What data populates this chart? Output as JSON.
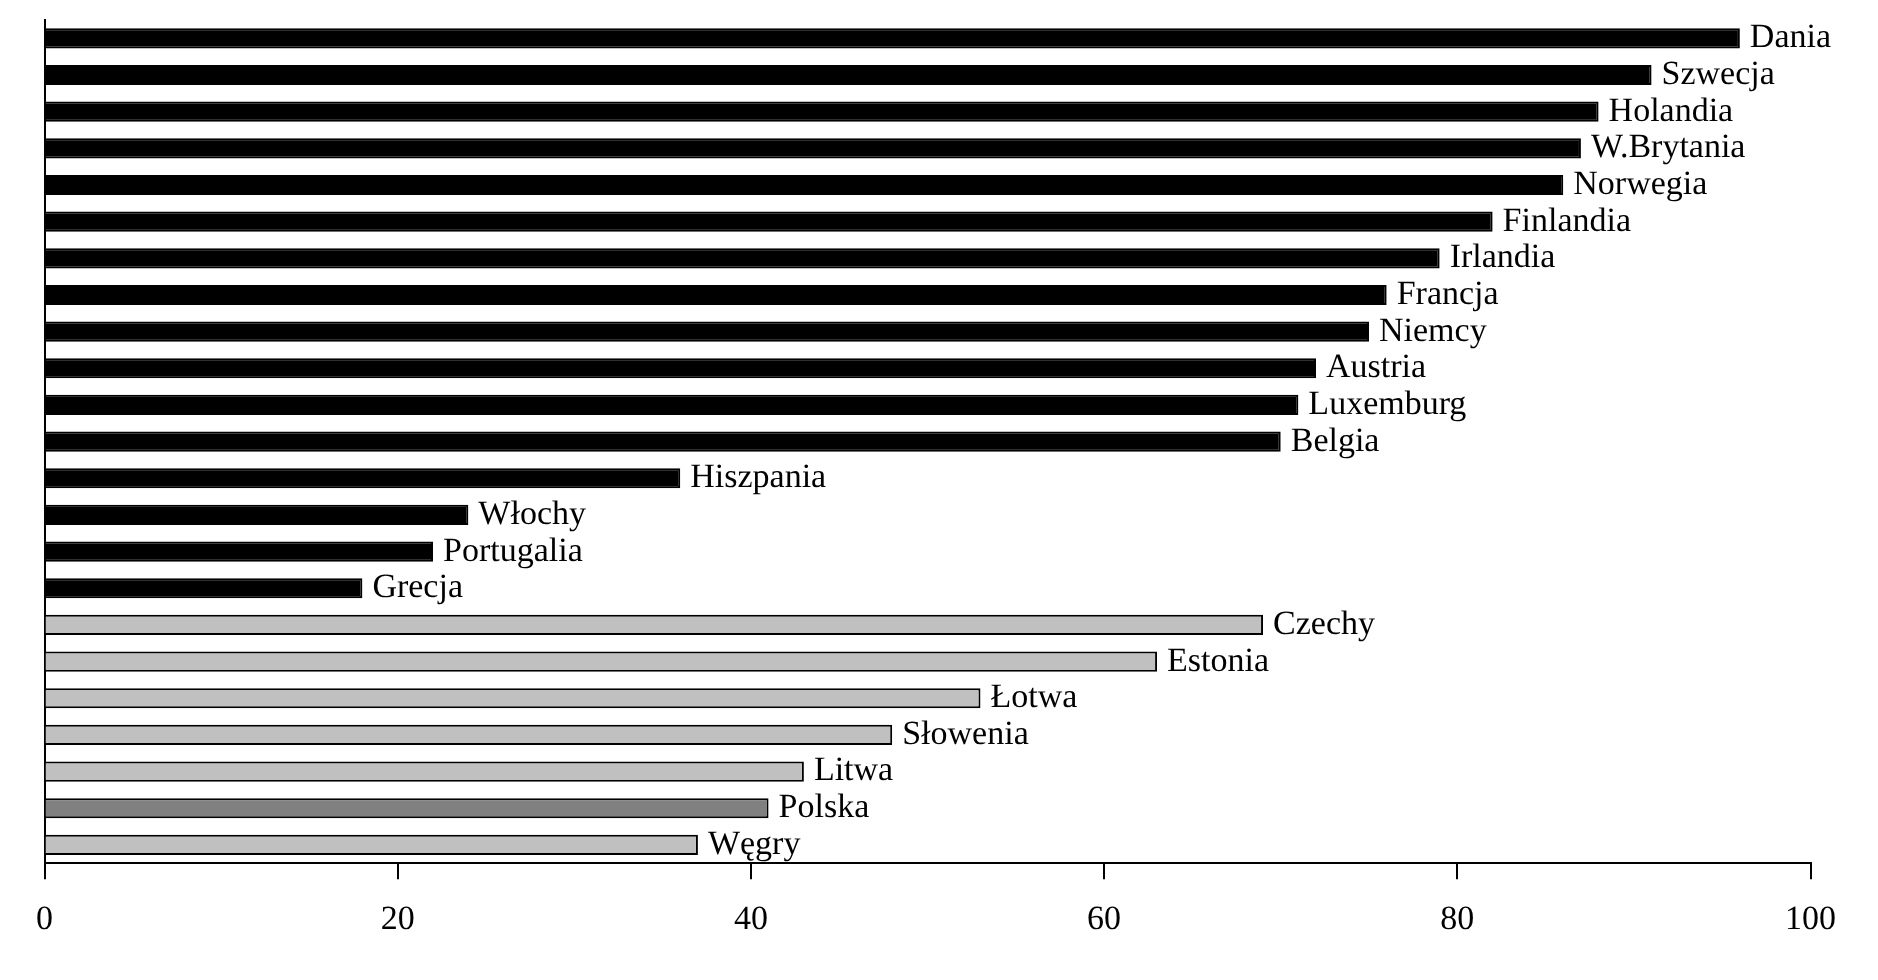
{
  "chart_data": {
    "type": "bar",
    "orientation": "horizontal",
    "categories": [
      "Dania",
      "Szwecja",
      "Holandia",
      "W.Brytania",
      "Norwegia",
      "Finlandia",
      "Irlandia",
      "Francja",
      "Niemcy",
      "Austria",
      "Luxemburg",
      "Belgia",
      "Hiszpania",
      "Włochy",
      "Portugalia",
      "Grecja",
      "Czechy",
      "Estonia",
      "Łotwa",
      "Słowenia",
      "Litwa",
      "Polska",
      "Węgry"
    ],
    "values": [
      96,
      91,
      88,
      87,
      86,
      82,
      79,
      76,
      75,
      72,
      71,
      70,
      36,
      24,
      22,
      18,
      69,
      63,
      53,
      48,
      43,
      41,
      37
    ],
    "colors": [
      "#000000",
      "#000000",
      "#000000",
      "#000000",
      "#000000",
      "#000000",
      "#000000",
      "#000000",
      "#000000",
      "#000000",
      "#000000",
      "#000000",
      "#000000",
      "#000000",
      "#000000",
      "#000000",
      "#c0c0c0",
      "#c0c0c0",
      "#c0c0c0",
      "#c0c0c0",
      "#c0c0c0",
      "#808080",
      "#c0c0c0"
    ],
    "xlim": [
      0,
      100
    ],
    "xticks": [
      0,
      20,
      40,
      60,
      80,
      100
    ],
    "grid": false,
    "tick_labels": "x"
  }
}
